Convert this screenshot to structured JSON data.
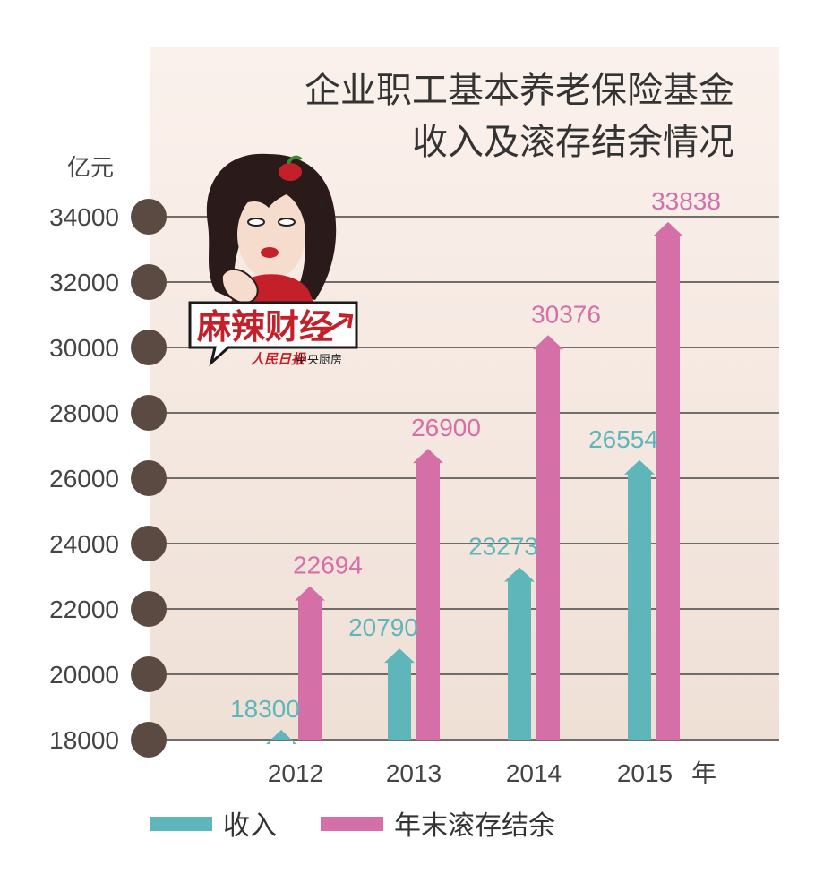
{
  "chart_data": {
    "type": "bar",
    "title": "企业职工基本养老保险基金",
    "subtitle": "收入及滚存结余情况",
    "ylabel": "亿元",
    "xlabel": "年",
    "ylim": [
      18000,
      34000
    ],
    "yticks": [
      18000,
      20000,
      22000,
      24000,
      26000,
      28000,
      30000,
      32000,
      34000
    ],
    "categories": [
      "2012",
      "2013",
      "2014",
      "2015"
    ],
    "series": [
      {
        "name": "收入",
        "values": [
          18300,
          20790,
          23273,
          26554
        ],
        "color": "#5fb6ba"
      },
      {
        "name": "年末滚存结余",
        "values": [
          22694,
          26900,
          30376,
          33838
        ],
        "color": "#d46fa8"
      }
    ],
    "grid": true,
    "legend_position": "bottom"
  },
  "logo": {
    "name": "麻辣财经",
    "publisher": "人民日报",
    "publisher_suffix": "中央厨房",
    "registered_mark": "®"
  },
  "colors": {
    "background_top": "#fbf1ec",
    "background_bottom": "#efe0d6",
    "grid": "#444444",
    "tick_dot": "#5a4a42",
    "title": "#333333"
  }
}
